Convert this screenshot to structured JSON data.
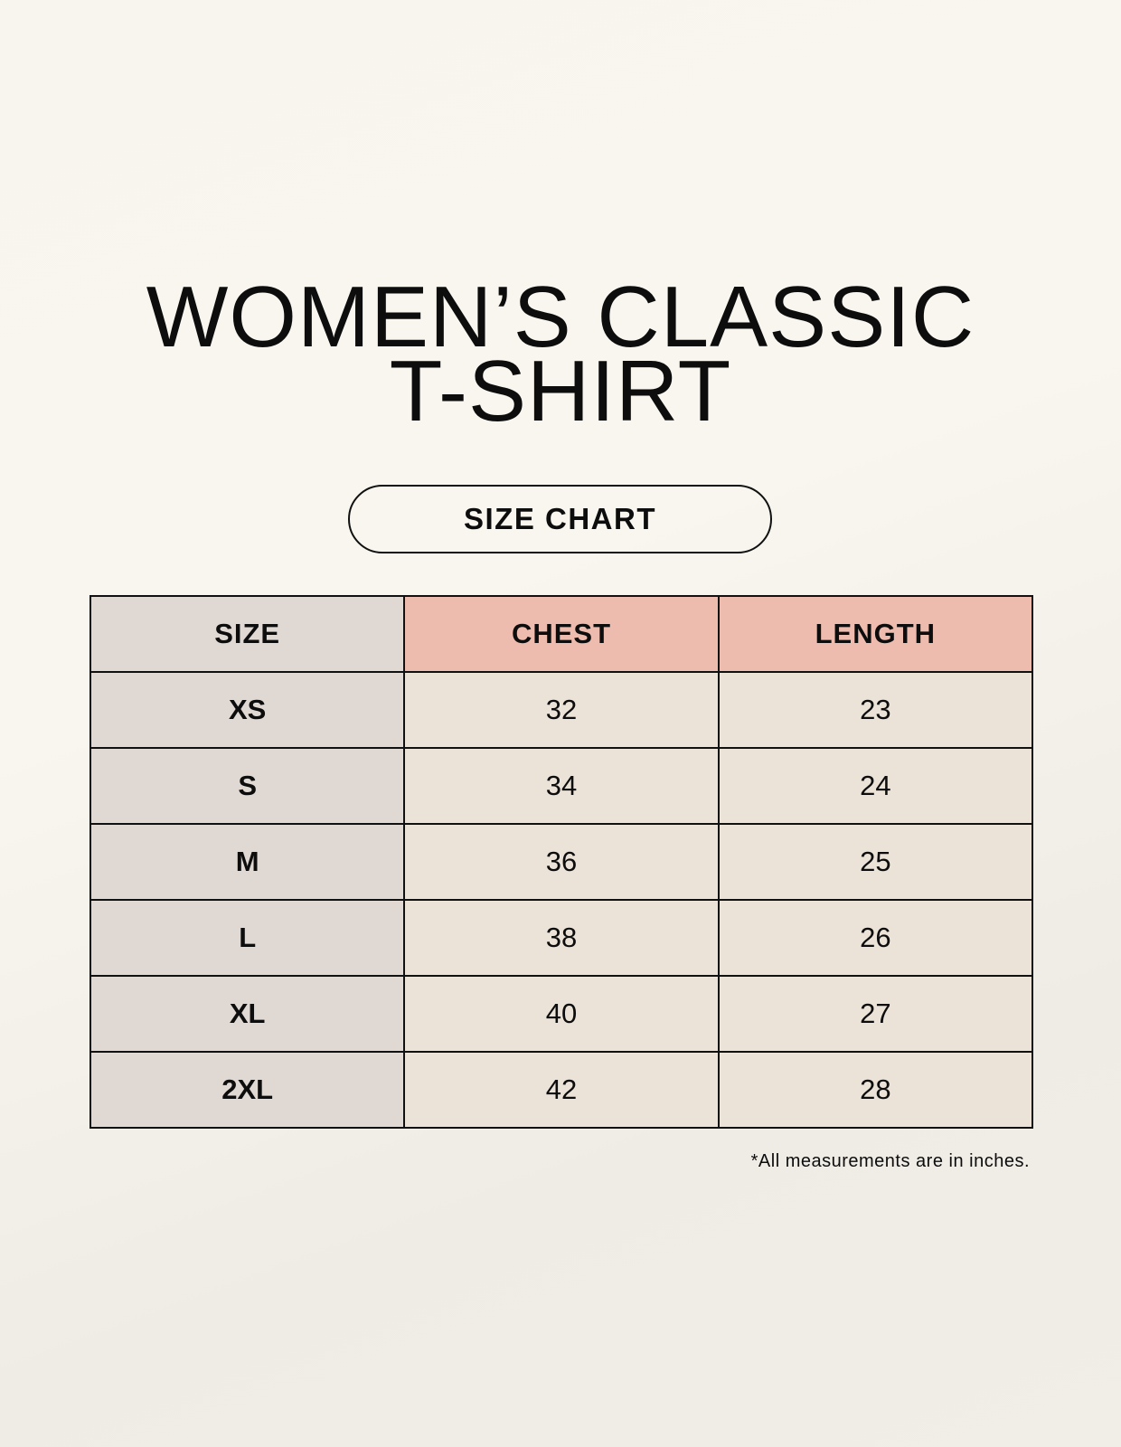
{
  "title": {
    "line1": "WOMEN’S CLASSIC",
    "line2": "T-SHIRT"
  },
  "subtitle": "SIZE CHART",
  "table": {
    "headers": [
      "SIZE",
      "CHEST",
      "LENGTH"
    ],
    "rows": [
      [
        "XS",
        "32",
        "23"
      ],
      [
        "S",
        "34",
        "24"
      ],
      [
        "M",
        "36",
        "25"
      ],
      [
        "L",
        "38",
        "26"
      ],
      [
        "XL",
        "40",
        "27"
      ],
      [
        "2XL",
        "42",
        "28"
      ]
    ]
  },
  "footnote": "*All measurements are in inches.",
  "colors": {
    "size_column": "#e0d8d3",
    "measure_header": "#edbcaf",
    "measure_cells": "#ebe2d8"
  }
}
